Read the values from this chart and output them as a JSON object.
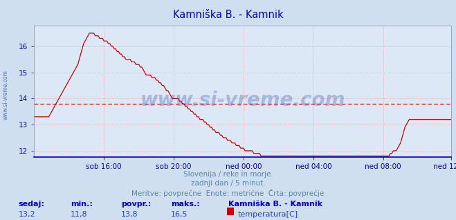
{
  "title": "Kamniška B. - Kamnik",
  "title_color": "#0000cc",
  "bg_color": "#d0dff0",
  "plot_bg_color": "#dce8f5",
  "line_color": "#cc0000",
  "avg_line_color": "#cc0000",
  "avg_value": 13.8,
  "ymin": 11.8,
  "ymax": 16.8,
  "yticks": [
    12,
    13,
    14,
    15,
    16
  ],
  "grid_color": "#ff9999",
  "watermark": "www.si-vreme.com",
  "watermark_color": "#2255bb",
  "watermark_alpha": 0.3,
  "side_label": "www.si-vreme.com",
  "side_label_color": "#2255bb",
  "subtitle1": "Slovenija / reke in morje.",
  "subtitle2": "zadnji dan / 5 minut.",
  "subtitle3": "Meritve: povprečne  Enote: metrične  Črta: povprečje",
  "subtitle_color": "#5588aa",
  "tick_color": "#0000aa",
  "footer_label_color": "#0000cc",
  "footer_value_color": "#2244cc",
  "sedaj": "13,2",
  "min_val": "11,8",
  "povpr": "13,8",
  "maks": "16,5",
  "legend_title": "Kamniška B. - Kamnik",
  "legend_series": "temperatura[C]",
  "legend_color": "#cc0000",
  "x_tick_labels": [
    "sob 16:00",
    "sob 20:00",
    "ned 00:00",
    "ned 04:00",
    "ned 08:00",
    "ned 12:00"
  ],
  "x_tick_positions": [
    48,
    96,
    144,
    192,
    240,
    287
  ],
  "n_points": 288,
  "temp_data": [
    13.3,
    13.3,
    13.3,
    13.3,
    13.3,
    13.3,
    13.3,
    13.3,
    13.3,
    13.3,
    13.3,
    13.4,
    13.5,
    13.6,
    13.7,
    13.8,
    13.9,
    14.0,
    14.1,
    14.2,
    14.3,
    14.4,
    14.5,
    14.6,
    14.7,
    14.8,
    14.9,
    15.0,
    15.1,
    15.2,
    15.3,
    15.5,
    15.7,
    15.9,
    16.1,
    16.2,
    16.3,
    16.4,
    16.5,
    16.5,
    16.5,
    16.5,
    16.4,
    16.4,
    16.4,
    16.3,
    16.3,
    16.3,
    16.2,
    16.2,
    16.2,
    16.1,
    16.1,
    16.0,
    16.0,
    15.9,
    15.9,
    15.8,
    15.8,
    15.7,
    15.7,
    15.6,
    15.6,
    15.5,
    15.5,
    15.5,
    15.5,
    15.4,
    15.4,
    15.4,
    15.3,
    15.3,
    15.3,
    15.2,
    15.2,
    15.1,
    15.0,
    14.9,
    14.9,
    14.9,
    14.9,
    14.8,
    14.8,
    14.8,
    14.7,
    14.7,
    14.6,
    14.6,
    14.5,
    14.5,
    14.4,
    14.3,
    14.3,
    14.2,
    14.1,
    14.0,
    14.0,
    14.0,
    14.0,
    14.0,
    13.9,
    13.9,
    13.8,
    13.8,
    13.7,
    13.7,
    13.6,
    13.6,
    13.5,
    13.5,
    13.4,
    13.4,
    13.3,
    13.3,
    13.2,
    13.2,
    13.2,
    13.1,
    13.1,
    13.0,
    13.0,
    12.9,
    12.9,
    12.8,
    12.8,
    12.7,
    12.7,
    12.7,
    12.6,
    12.6,
    12.5,
    12.5,
    12.5,
    12.4,
    12.4,
    12.4,
    12.3,
    12.3,
    12.3,
    12.2,
    12.2,
    12.2,
    12.1,
    12.1,
    12.1,
    12.0,
    12.0,
    12.0,
    12.0,
    12.0,
    12.0,
    11.9,
    11.9,
    11.9,
    11.9,
    11.9,
    11.8,
    11.8,
    11.8,
    11.8,
    11.8,
    11.8,
    11.8,
    11.8,
    11.8,
    11.8,
    11.8,
    11.8,
    11.8,
    11.8,
    11.8,
    11.8,
    11.8,
    11.8,
    11.8,
    11.8,
    11.8,
    11.8,
    11.8,
    11.8,
    11.8,
    11.8,
    11.8,
    11.8,
    11.8,
    11.8,
    11.8,
    11.8,
    11.8,
    11.8,
    11.8,
    11.8,
    11.8,
    11.8,
    11.8,
    11.8,
    11.8,
    11.8,
    11.8,
    11.8,
    11.8,
    11.8,
    11.8,
    11.8,
    11.8,
    11.8,
    11.8,
    11.8,
    11.8,
    11.8,
    11.8,
    11.8,
    11.8,
    11.8,
    11.8,
    11.8,
    11.8,
    11.8,
    11.8,
    11.8,
    11.8,
    11.8,
    11.8,
    11.8,
    11.8,
    11.8,
    11.8,
    11.8,
    11.8,
    11.8,
    11.8,
    11.8,
    11.8,
    11.8,
    11.8,
    11.8,
    11.8,
    11.8,
    11.8,
    11.8,
    11.8,
    11.8,
    11.8,
    11.8,
    11.8,
    11.9,
    11.9,
    12.0,
    12.0,
    12.0,
    12.1,
    12.2,
    12.3,
    12.5,
    12.7,
    12.9,
    13.0,
    13.1,
    13.2,
    13.2,
    13.2,
    13.2,
    13.2,
    13.2,
    13.2,
    13.2,
    13.2,
    13.2,
    13.2,
    13.2,
    13.2,
    13.2,
    13.2,
    13.2,
    13.2,
    13.2,
    13.2,
    13.2,
    13.2,
    13.2,
    13.2,
    13.2,
    13.2,
    13.2,
    13.2,
    13.2,
    13.2,
    13.2
  ]
}
